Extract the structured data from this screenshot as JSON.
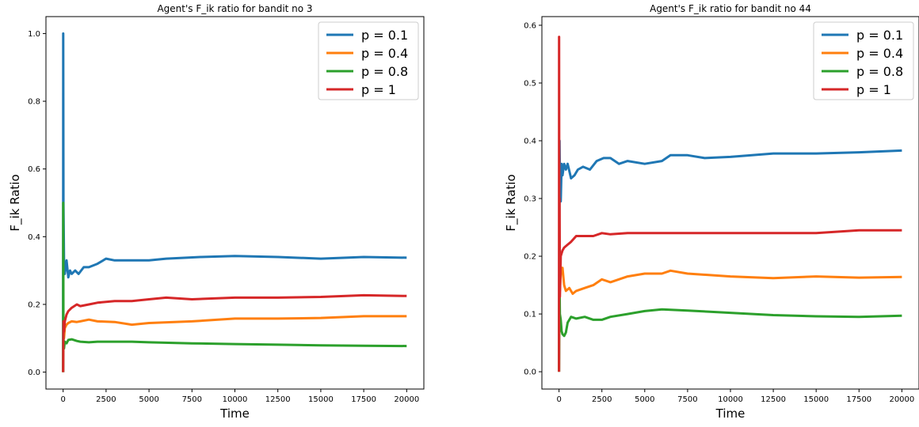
{
  "chart_data": [
    {
      "type": "line",
      "title": "Agent's F_ik ratio for bandit no 3",
      "xlabel": "Time",
      "ylabel": "F_ik Ratio",
      "xlim": [
        -1000,
        21000
      ],
      "ylim": [
        -0.05,
        1.05
      ],
      "xticks": [
        0,
        2500,
        5000,
        7500,
        10000,
        12500,
        15000,
        17500,
        20000
      ],
      "yticks": [
        0.0,
        0.2,
        0.4,
        0.6,
        0.8,
        1.0
      ],
      "grid": false,
      "legend": "top-right",
      "series": [
        {
          "name": "p = 0.1",
          "color": "#1f77b4",
          "x": [
            0,
            5,
            20,
            50,
            100,
            150,
            200,
            300,
            400,
            500,
            700,
            900,
            1200,
            1500,
            2000,
            2500,
            3000,
            4000,
            5000,
            6000,
            8000,
            10000,
            12500,
            15000,
            17500,
            20000
          ],
          "y": [
            0.0,
            1.0,
            0.5,
            0.33,
            0.29,
            0.31,
            0.33,
            0.28,
            0.3,
            0.29,
            0.3,
            0.29,
            0.31,
            0.31,
            0.32,
            0.335,
            0.33,
            0.33,
            0.33,
            0.335,
            0.34,
            0.343,
            0.34,
            0.335,
            0.34,
            0.338
          ]
        },
        {
          "name": "p = 0.4",
          "color": "#ff7f0e",
          "x": [
            0,
            20,
            50,
            100,
            200,
            300,
            500,
            800,
            1000,
            1500,
            2000,
            3000,
            4000,
            5000,
            7500,
            10000,
            12500,
            15000,
            17500,
            20000
          ],
          "y": [
            0.0,
            0.12,
            0.1,
            0.13,
            0.14,
            0.145,
            0.15,
            0.148,
            0.15,
            0.155,
            0.15,
            0.148,
            0.14,
            0.145,
            0.15,
            0.158,
            0.158,
            0.16,
            0.165,
            0.165
          ]
        },
        {
          "name": "p = 0.8",
          "color": "#2ca02c",
          "x": [
            0,
            5,
            20,
            50,
            100,
            200,
            300,
            500,
            800,
            1000,
            1500,
            2000,
            3000,
            4000,
            5000,
            7500,
            10000,
            12500,
            15000,
            17500,
            20000
          ],
          "y": [
            0.0,
            0.5,
            0.1,
            0.07,
            0.09,
            0.085,
            0.095,
            0.097,
            0.092,
            0.09,
            0.088,
            0.09,
            0.09,
            0.09,
            0.088,
            0.085,
            0.083,
            0.081,
            0.079,
            0.078,
            0.077
          ]
        },
        {
          "name": "p = 1",
          "color": "#d62728",
          "x": [
            0,
            20,
            50,
            100,
            200,
            300,
            500,
            800,
            1000,
            1500,
            2000,
            3000,
            4000,
            5000,
            6000,
            7500,
            10000,
            12500,
            15000,
            17500,
            20000
          ],
          "y": [
            0.0,
            0.15,
            0.12,
            0.15,
            0.17,
            0.18,
            0.19,
            0.2,
            0.195,
            0.2,
            0.205,
            0.21,
            0.21,
            0.215,
            0.22,
            0.215,
            0.22,
            0.22,
            0.222,
            0.227,
            0.225
          ]
        }
      ]
    },
    {
      "type": "line",
      "title": "Agent's F_ik ratio for bandit no 44",
      "xlabel": "Time",
      "ylabel": "F_ik Ratio",
      "xlim": [
        -1000,
        21000
      ],
      "ylim": [
        -0.03,
        0.615
      ],
      "xticks": [
        0,
        2500,
        5000,
        7500,
        10000,
        12500,
        15000,
        17500,
        20000
      ],
      "yticks": [
        0.0,
        0.1,
        0.2,
        0.3,
        0.4,
        0.5,
        0.6
      ],
      "grid": false,
      "legend": "top-right",
      "series": [
        {
          "name": "p = 0.1",
          "color": "#1f77b4",
          "x": [
            0,
            30,
            60,
            100,
            150,
            200,
            300,
            400,
            500,
            700,
            900,
            1100,
            1400,
            1800,
            2200,
            2600,
            3000,
            3500,
            4000,
            5000,
            6000,
            6500,
            7500,
            8500,
            10000,
            12500,
            15000,
            17500,
            20000
          ],
          "y": [
            0.0,
            0.4,
            0.3,
            0.295,
            0.36,
            0.34,
            0.36,
            0.35,
            0.36,
            0.335,
            0.34,
            0.35,
            0.355,
            0.35,
            0.365,
            0.37,
            0.37,
            0.36,
            0.365,
            0.36,
            0.365,
            0.375,
            0.375,
            0.37,
            0.372,
            0.378,
            0.378,
            0.38,
            0.383
          ]
        },
        {
          "name": "p = 0.4",
          "color": "#ff7f0e",
          "x": [
            0,
            20,
            50,
            100,
            200,
            300,
            400,
            600,
            800,
            1000,
            1500,
            2000,
            2500,
            3000,
            4000,
            5000,
            6000,
            6500,
            7500,
            10000,
            12500,
            15000,
            17500,
            20000
          ],
          "y": [
            0.0,
            0.2,
            0.14,
            0.17,
            0.18,
            0.15,
            0.14,
            0.145,
            0.135,
            0.14,
            0.145,
            0.15,
            0.16,
            0.155,
            0.165,
            0.17,
            0.17,
            0.175,
            0.17,
            0.165,
            0.162,
            0.165,
            0.163,
            0.164
          ]
        },
        {
          "name": "p = 0.8",
          "color": "#2ca02c",
          "x": [
            0,
            20,
            50,
            100,
            150,
            200,
            300,
            400,
            500,
            700,
            1000,
            1500,
            2000,
            2500,
            3000,
            4000,
            5000,
            6000,
            7500,
            10000,
            12500,
            15000,
            17500,
            20000
          ],
          "y": [
            0.0,
            0.17,
            0.1,
            0.09,
            0.07,
            0.065,
            0.062,
            0.068,
            0.085,
            0.095,
            0.092,
            0.095,
            0.09,
            0.09,
            0.095,
            0.1,
            0.105,
            0.108,
            0.106,
            0.102,
            0.098,
            0.096,
            0.095,
            0.097
          ]
        },
        {
          "name": "p = 1",
          "color": "#d62728",
          "x": [
            0,
            5,
            15,
            30,
            50,
            100,
            200,
            300,
            500,
            700,
            1000,
            1500,
            2000,
            2500,
            3000,
            4000,
            5000,
            7500,
            10000,
            12500,
            15000,
            17500,
            20000
          ],
          "y": [
            0.0,
            0.58,
            0.15,
            0.3,
            0.13,
            0.2,
            0.21,
            0.215,
            0.22,
            0.225,
            0.235,
            0.235,
            0.235,
            0.24,
            0.238,
            0.24,
            0.24,
            0.24,
            0.24,
            0.24,
            0.24,
            0.245,
            0.245
          ]
        }
      ]
    }
  ]
}
